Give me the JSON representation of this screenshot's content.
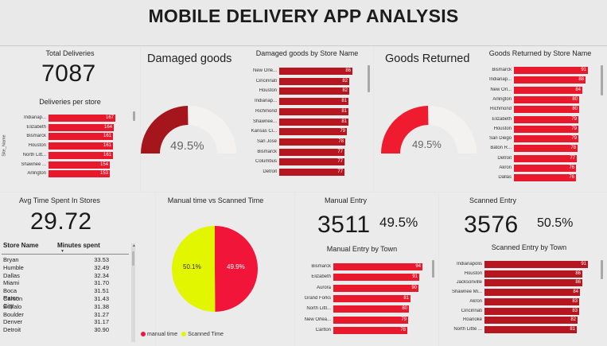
{
  "dashboard_title": "MOBILE DELIVERY APP ANALYSIS",
  "total_deliveries": {
    "title": "Total Deliveries",
    "value": "7087",
    "chart_title": "Deliveries per store",
    "axis_label": "Site_Name",
    "rows": [
      {
        "label": "Indianap...",
        "value": 167
      },
      {
        "label": "Elizabeth",
        "value": 164
      },
      {
        "label": "Bismarck",
        "value": 161
      },
      {
        "label": "Houston",
        "value": 161
      },
      {
        "label": "North Litt...",
        "value": 161
      },
      {
        "label": "Shawnee ...",
        "value": 154
      },
      {
        "label": "Arlington",
        "value": 153
      }
    ]
  },
  "damaged_goods": {
    "title": "Damaged goods",
    "gauge_value": "49.5%",
    "gauge_fraction": 0.495,
    "chart_title": "Damaged goods by Store Name",
    "rows": [
      {
        "label": "New Orle...",
        "value": 86
      },
      {
        "label": "Cincinnati",
        "value": 82
      },
      {
        "label": "Houston",
        "value": 82
      },
      {
        "label": "Indianap...",
        "value": 81
      },
      {
        "label": "Richmond",
        "value": 81
      },
      {
        "label": "Shawnee...",
        "value": 81
      },
      {
        "label": "Kansas Ci...",
        "value": 79
      },
      {
        "label": "San Jose",
        "value": 78
      },
      {
        "label": "Bismarck",
        "value": 77
      },
      {
        "label": "Columbus",
        "value": 77
      },
      {
        "label": "Detroit",
        "value": 77
      }
    ]
  },
  "goods_returned": {
    "title": "Goods Returned",
    "gauge_value": "49.5%",
    "gauge_fraction": 0.495,
    "chart_title": "Goods Returned by Store Name",
    "rows": [
      {
        "label": "Bismarck",
        "value": 91
      },
      {
        "label": "Indianap...",
        "value": 88
      },
      {
        "label": "New Orl...",
        "value": 84
      },
      {
        "label": "Arlington",
        "value": 80
      },
      {
        "label": "Richmond",
        "value": 80
      },
      {
        "label": "Elizabeth",
        "value": 79
      },
      {
        "label": "Houston",
        "value": 79
      },
      {
        "label": "San Diego",
        "value": 79
      },
      {
        "label": "Baton R...",
        "value": 78
      },
      {
        "label": "Detroit",
        "value": 77
      },
      {
        "label": "Akron",
        "value": 76
      },
      {
        "label": "Dallas",
        "value": 76
      }
    ]
  },
  "avg_time": {
    "title": "Avg Time Spent In Stores",
    "value": "29.72",
    "col_store": "Store Name",
    "col_minutes": "Minutes spent",
    "rows": [
      {
        "store": "Bryan",
        "minutes": "33.53"
      },
      {
        "store": "Humble",
        "minutes": "32.49"
      },
      {
        "store": "Dallas",
        "minutes": "32.34"
      },
      {
        "store": "Miami",
        "minutes": "31.70"
      },
      {
        "store": "Boca Raton",
        "minutes": "31.51"
      },
      {
        "store": "Carson City",
        "minutes": "31.43"
      },
      {
        "store": "Buffalo",
        "minutes": "31.38"
      },
      {
        "store": "Boulder",
        "minutes": "31.27"
      },
      {
        "store": "Denver",
        "minutes": "31.17"
      },
      {
        "store": "Detroit",
        "minutes": "30.90"
      }
    ]
  },
  "manual_vs_scanned": {
    "title": "Manual time vs Scanned Time",
    "legend_manual": "manual time",
    "legend_scanned": "Scanned Time",
    "manual_pct_label": "49.9%",
    "scanned_pct_label": "50.1%",
    "manual_fraction": 0.499,
    "manual_color": "#f2153a",
    "scanned_color": "#e2f600"
  },
  "manual_entry": {
    "title": "Manual Entry",
    "value": "3511",
    "pct": "49.5%",
    "chart_title": "Manual Entry by Town",
    "rows": [
      {
        "label": "Bismarck",
        "value": 94
      },
      {
        "label": "Elizabeth",
        "value": 91
      },
      {
        "label": "Aurora",
        "value": 90
      },
      {
        "label": "Grand Forks",
        "value": 81
      },
      {
        "label": "North Littl...",
        "value": 80
      },
      {
        "label": "New Orlea...",
        "value": 79
      },
      {
        "label": "Carlton",
        "value": 78
      }
    ]
  },
  "scanned_entry": {
    "title": "Scanned Entry",
    "value": "3576",
    "pct": "50.5%",
    "chart_title": "Scanned Entry by Town",
    "rows": [
      {
        "label": "Indianapolis",
        "value": 91
      },
      {
        "label": "Houston",
        "value": 86
      },
      {
        "label": "Jacksonville",
        "value": 86
      },
      {
        "label": "Shawnee Mi...",
        "value": 84
      },
      {
        "label": "Akron",
        "value": 83
      },
      {
        "label": "Cincinnati",
        "value": 83
      },
      {
        "label": "Roanoke",
        "value": 82
      },
      {
        "label": "North Little ...",
        "value": 81
      }
    ]
  },
  "colors": {
    "bar_dark": "#b5161f",
    "bar_bright": "#e8192c",
    "gauge_fill_dark": "#a4161c",
    "gauge_fill_bright": "#ee1c2e",
    "gauge_track": "#f3f2f1"
  }
}
